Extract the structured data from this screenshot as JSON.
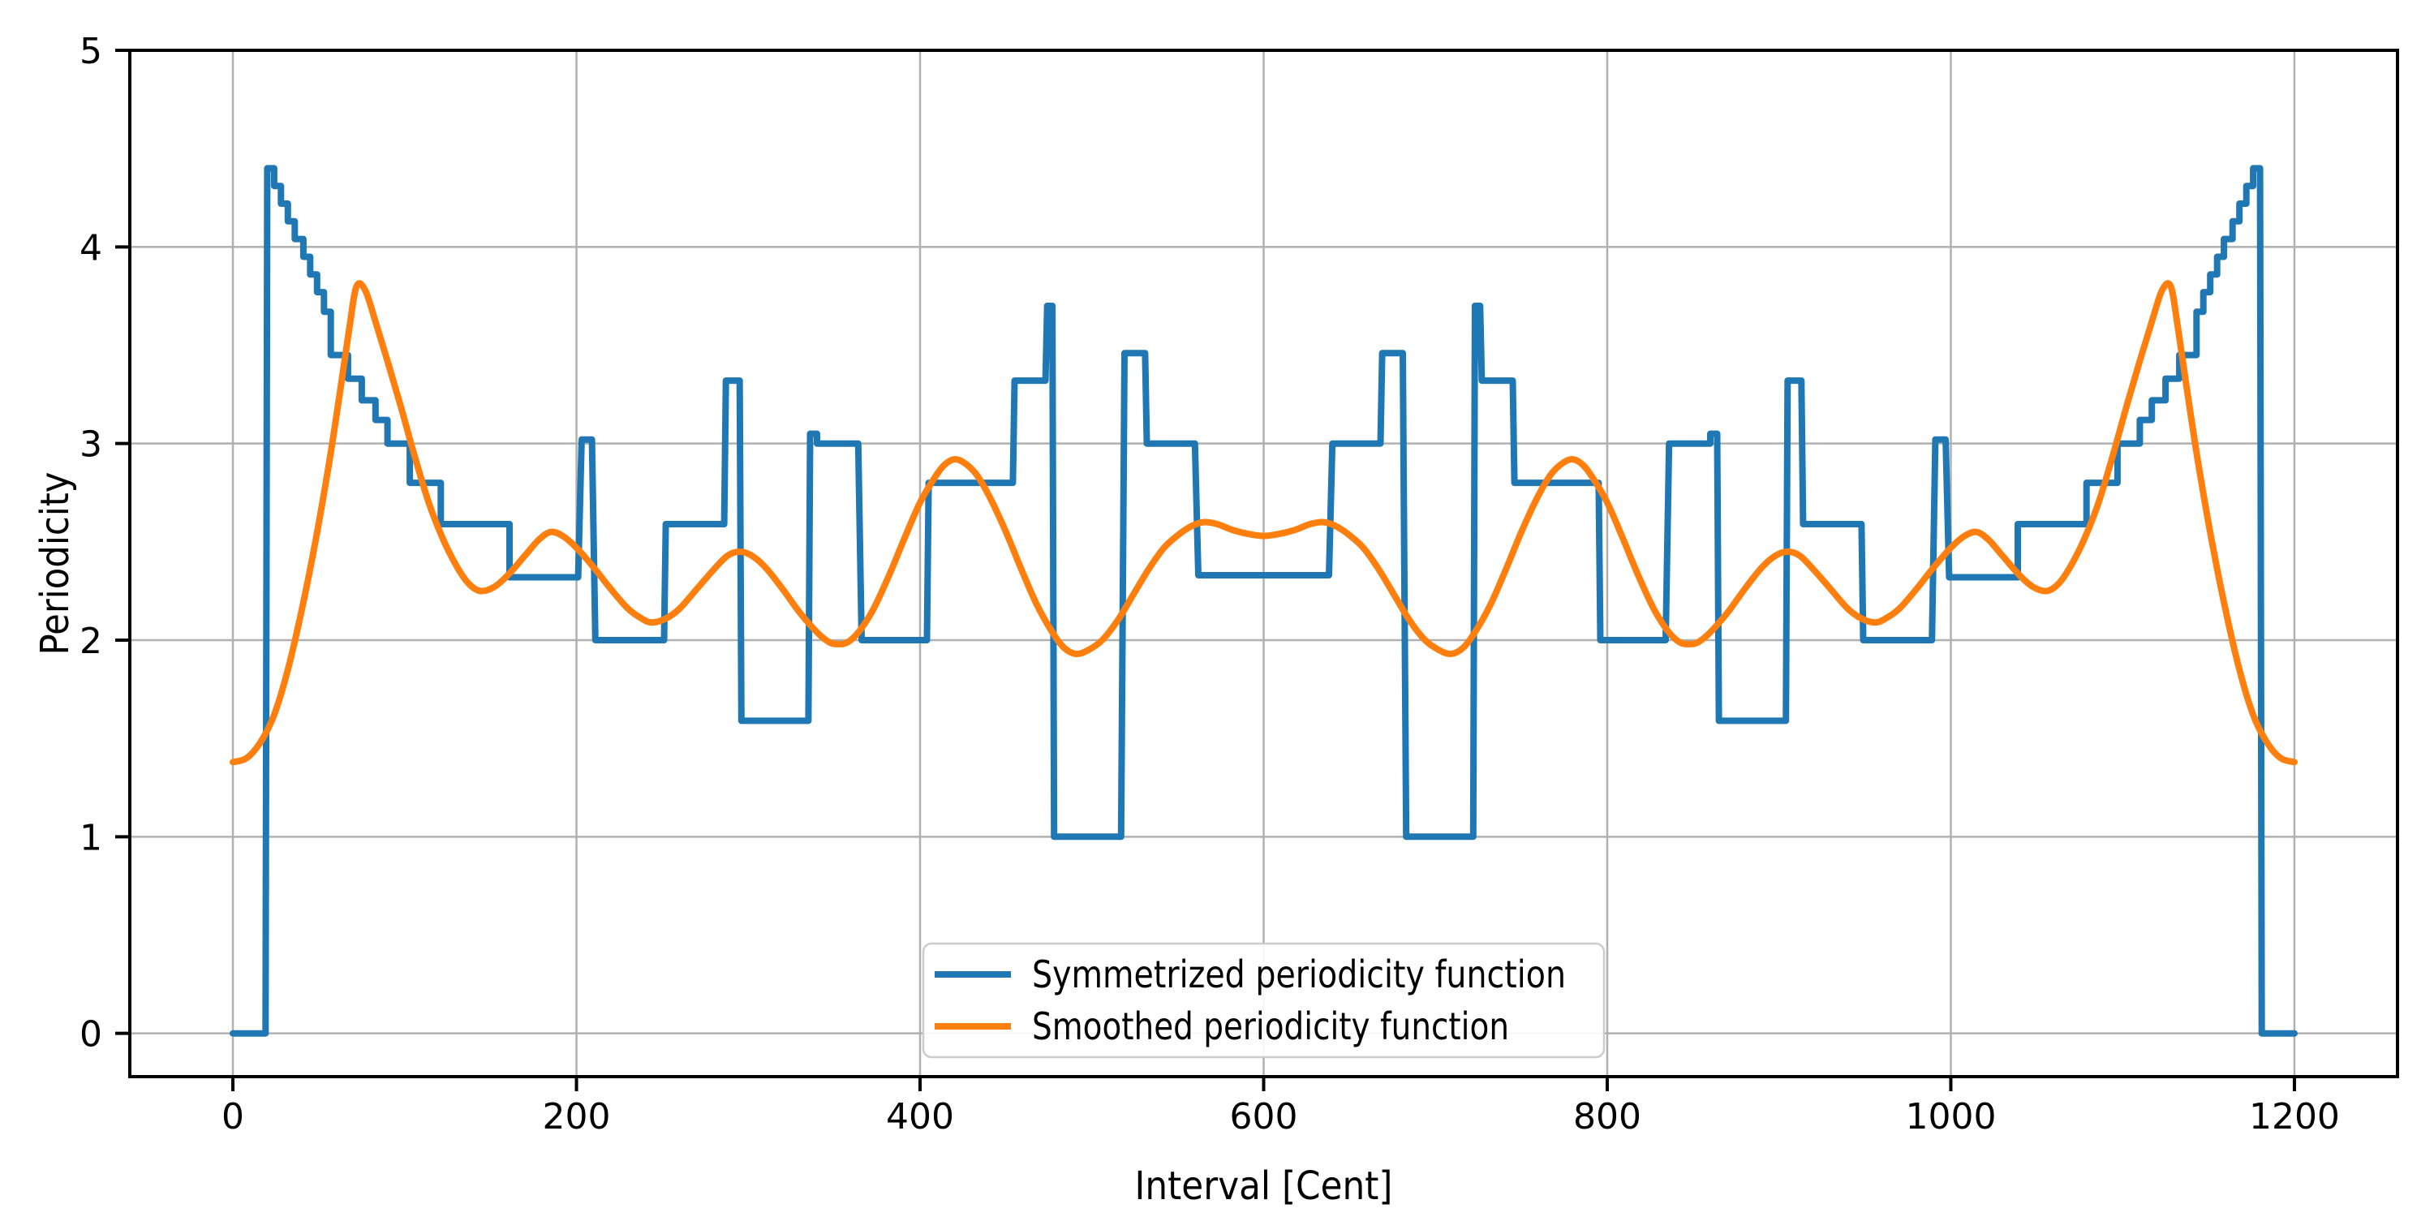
{
  "figure_background": "#ffffff",
  "axis_color": "#000000",
  "grid_color": "#b0b0b0",
  "legend_border_color": "#cccccc",
  "legend_background": "#ffffff",
  "chart_data": {
    "type": "line",
    "title": "",
    "xlabel": "Interval [Cent]",
    "ylabel": "Periodicity",
    "xlim": [
      -60,
      1260
    ],
    "ylim": [
      -0.22,
      5
    ],
    "x_ticks": [
      0,
      200,
      400,
      600,
      800,
      1000,
      1200
    ],
    "y_ticks": [
      0,
      1,
      2,
      3,
      4,
      5
    ],
    "grid": true,
    "legend": {
      "position": "lower center",
      "entries": [
        "Symmetrized periodicity function",
        "Smoothed periodicity function"
      ]
    },
    "series": [
      {
        "name": "Symmetrized periodicity function",
        "color": "#1f77b4",
        "line_width": 8,
        "style": "steps",
        "segments": [
          [
            0,
            19,
            0
          ],
          [
            20,
            24,
            4.4
          ],
          [
            24,
            28,
            4.31
          ],
          [
            28,
            32,
            4.22
          ],
          [
            32,
            36,
            4.13
          ],
          [
            36,
            41,
            4.04
          ],
          [
            41,
            45,
            3.95
          ],
          [
            45,
            49,
            3.86
          ],
          [
            49,
            53,
            3.77
          ],
          [
            53,
            57,
            3.67
          ],
          [
            57,
            67,
            3.45
          ],
          [
            67,
            75,
            3.33
          ],
          [
            75,
            83,
            3.22
          ],
          [
            83,
            90,
            3.12
          ],
          [
            90,
            103,
            3.0
          ],
          [
            103,
            121,
            2.8
          ],
          [
            121,
            161,
            2.59
          ],
          [
            161,
            201,
            2.32
          ],
          [
            203,
            209,
            3.02
          ],
          [
            211,
            251,
            2.0
          ],
          [
            252,
            286,
            2.59
          ],
          [
            287,
            295,
            3.32
          ],
          [
            296,
            335,
            1.59
          ],
          [
            336,
            340,
            3.05
          ],
          [
            340,
            364,
            3.0
          ],
          [
            366,
            404,
            2.0
          ],
          [
            405,
            454,
            2.8
          ],
          [
            455,
            473,
            3.32
          ],
          [
            474,
            477,
            3.7
          ],
          [
            478,
            517,
            1.0
          ],
          [
            519,
            531,
            3.46
          ],
          [
            532,
            560,
            3.0
          ],
          [
            562,
            638,
            2.33
          ],
          [
            640,
            668,
            3.0
          ],
          [
            669,
            681,
            3.46
          ],
          [
            683,
            722,
            1.0
          ],
          [
            723,
            726,
            3.7
          ],
          [
            727,
            745,
            3.32
          ],
          [
            746,
            795,
            2.8
          ],
          [
            796,
            834,
            2.0
          ],
          [
            836,
            860,
            3.0
          ],
          [
            860,
            864,
            3.05
          ],
          [
            865,
            904,
            1.59
          ],
          [
            905,
            913,
            3.32
          ],
          [
            914,
            948,
            2.59
          ],
          [
            949,
            989,
            2.0
          ],
          [
            991,
            997,
            3.02
          ],
          [
            999,
            1039,
            2.32
          ],
          [
            1039,
            1079,
            2.59
          ],
          [
            1079,
            1097,
            2.8
          ],
          [
            1097,
            1110,
            3.0
          ],
          [
            1110,
            1117,
            3.12
          ],
          [
            1117,
            1125,
            3.22
          ],
          [
            1125,
            1133,
            3.33
          ],
          [
            1133,
            1143,
            3.45
          ],
          [
            1143,
            1147,
            3.67
          ],
          [
            1147,
            1151,
            3.77
          ],
          [
            1151,
            1155,
            3.86
          ],
          [
            1155,
            1159,
            3.95
          ],
          [
            1159,
            1164,
            4.04
          ],
          [
            1164,
            1168,
            4.13
          ],
          [
            1168,
            1172,
            4.22
          ],
          [
            1172,
            1176,
            4.31
          ],
          [
            1176,
            1180,
            4.4
          ],
          [
            1181,
            1200,
            0
          ]
        ]
      },
      {
        "name": "Smoothed periodicity function",
        "color": "#ff7f0e",
        "line_width": 8,
        "style": "smooth",
        "points": [
          [
            0,
            1.38
          ],
          [
            8,
            1.4
          ],
          [
            16,
            1.48
          ],
          [
            24,
            1.62
          ],
          [
            32,
            1.85
          ],
          [
            40,
            2.15
          ],
          [
            48,
            2.5
          ],
          [
            56,
            2.9
          ],
          [
            63,
            3.3
          ],
          [
            68,
            3.6
          ],
          [
            72,
            3.8
          ],
          [
            77,
            3.78
          ],
          [
            83,
            3.62
          ],
          [
            90,
            3.42
          ],
          [
            98,
            3.18
          ],
          [
            106,
            2.93
          ],
          [
            114,
            2.7
          ],
          [
            122,
            2.52
          ],
          [
            130,
            2.38
          ],
          [
            137,
            2.29
          ],
          [
            144,
            2.25
          ],
          [
            152,
            2.27
          ],
          [
            160,
            2.33
          ],
          [
            170,
            2.43
          ],
          [
            178,
            2.51
          ],
          [
            185,
            2.55
          ],
          [
            192,
            2.53
          ],
          [
            200,
            2.47
          ],
          [
            210,
            2.37
          ],
          [
            220,
            2.26
          ],
          [
            230,
            2.16
          ],
          [
            238,
            2.11
          ],
          [
            244,
            2.09
          ],
          [
            252,
            2.11
          ],
          [
            260,
            2.16
          ],
          [
            270,
            2.26
          ],
          [
            280,
            2.36
          ],
          [
            288,
            2.43
          ],
          [
            295,
            2.45
          ],
          [
            302,
            2.43
          ],
          [
            310,
            2.37
          ],
          [
            320,
            2.26
          ],
          [
            330,
            2.14
          ],
          [
            340,
            2.04
          ],
          [
            347,
            1.99
          ],
          [
            352,
            1.98
          ],
          [
            358,
            1.99
          ],
          [
            365,
            2.05
          ],
          [
            373,
            2.16
          ],
          [
            382,
            2.33
          ],
          [
            391,
            2.52
          ],
          [
            400,
            2.7
          ],
          [
            408,
            2.82
          ],
          [
            414,
            2.89
          ],
          [
            420,
            2.92
          ],
          [
            426,
            2.9
          ],
          [
            433,
            2.84
          ],
          [
            441,
            2.72
          ],
          [
            450,
            2.55
          ],
          [
            459,
            2.36
          ],
          [
            468,
            2.18
          ],
          [
            477,
            2.04
          ],
          [
            484,
            1.96
          ],
          [
            491,
            1.93
          ],
          [
            498,
            1.95
          ],
          [
            506,
            2.0
          ],
          [
            515,
            2.1
          ],
          [
            524,
            2.23
          ],
          [
            533,
            2.36
          ],
          [
            542,
            2.47
          ],
          [
            551,
            2.54
          ],
          [
            558,
            2.58
          ],
          [
            565,
            2.6
          ],
          [
            573,
            2.59
          ],
          [
            582,
            2.56
          ],
          [
            591,
            2.54
          ],
          [
            600,
            2.53
          ],
          [
            609,
            2.54
          ],
          [
            618,
            2.56
          ],
          [
            627,
            2.59
          ],
          [
            635,
            2.6
          ],
          [
            642,
            2.58
          ],
          [
            649,
            2.54
          ],
          [
            658,
            2.47
          ],
          [
            667,
            2.36
          ],
          [
            676,
            2.23
          ],
          [
            685,
            2.1
          ],
          [
            694,
            2.0
          ],
          [
            702,
            1.95
          ],
          [
            709,
            1.93
          ],
          [
            716,
            1.96
          ],
          [
            723,
            2.04
          ],
          [
            732,
            2.18
          ],
          [
            741,
            2.36
          ],
          [
            750,
            2.55
          ],
          [
            759,
            2.72
          ],
          [
            767,
            2.84
          ],
          [
            774,
            2.9
          ],
          [
            780,
            2.92
          ],
          [
            786,
            2.89
          ],
          [
            792,
            2.82
          ],
          [
            800,
            2.7
          ],
          [
            809,
            2.52
          ],
          [
            818,
            2.33
          ],
          [
            827,
            2.16
          ],
          [
            835,
            2.05
          ],
          [
            842,
            1.99
          ],
          [
            848,
            1.98
          ],
          [
            853,
            1.99
          ],
          [
            860,
            2.04
          ],
          [
            870,
            2.14
          ],
          [
            880,
            2.26
          ],
          [
            890,
            2.37
          ],
          [
            898,
            2.43
          ],
          [
            905,
            2.45
          ],
          [
            912,
            2.43
          ],
          [
            920,
            2.36
          ],
          [
            930,
            2.26
          ],
          [
            940,
            2.16
          ],
          [
            948,
            2.11
          ],
          [
            956,
            2.09
          ],
          [
            962,
            2.11
          ],
          [
            970,
            2.16
          ],
          [
            980,
            2.26
          ],
          [
            990,
            2.37
          ],
          [
            1000,
            2.47
          ],
          [
            1008,
            2.53
          ],
          [
            1015,
            2.55
          ],
          [
            1022,
            2.51
          ],
          [
            1030,
            2.43
          ],
          [
            1040,
            2.33
          ],
          [
            1048,
            2.27
          ],
          [
            1056,
            2.25
          ],
          [
            1063,
            2.29
          ],
          [
            1070,
            2.38
          ],
          [
            1078,
            2.52
          ],
          [
            1086,
            2.7
          ],
          [
            1094,
            2.93
          ],
          [
            1102,
            3.18
          ],
          [
            1110,
            3.42
          ],
          [
            1117,
            3.62
          ],
          [
            1123,
            3.78
          ],
          [
            1128,
            3.8
          ],
          [
            1132,
            3.6
          ],
          [
            1137,
            3.3
          ],
          [
            1144,
            2.9
          ],
          [
            1152,
            2.5
          ],
          [
            1160,
            2.15
          ],
          [
            1168,
            1.85
          ],
          [
            1176,
            1.62
          ],
          [
            1184,
            1.48
          ],
          [
            1192,
            1.4
          ],
          [
            1200,
            1.38
          ]
        ]
      }
    ]
  }
}
